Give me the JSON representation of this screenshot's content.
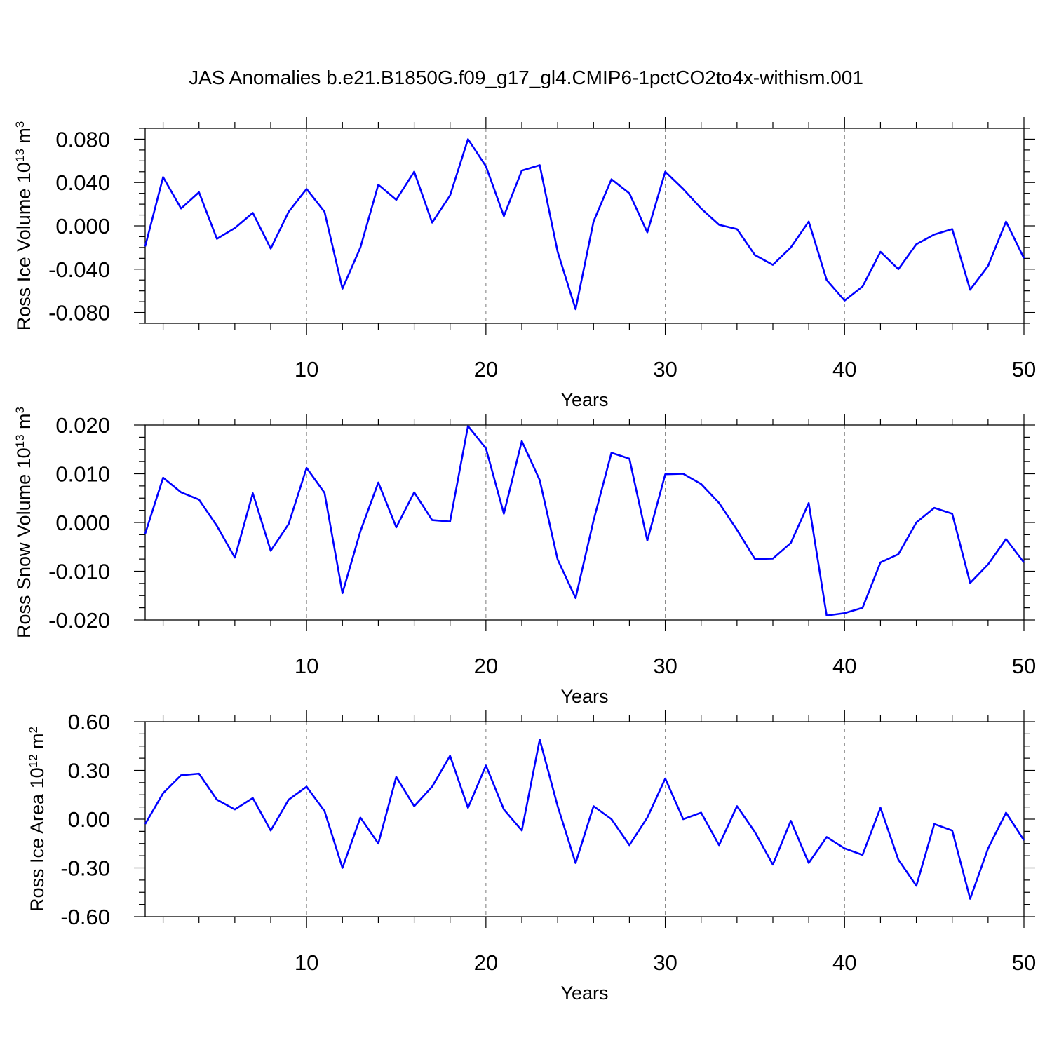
{
  "figure": {
    "title": "JAS Anomalies b.e21.B1850G.f09_g17_gl4.CMIP6-1pctCO2to4x-withism.001",
    "line_color": "#0000ff"
  },
  "chart_data": [
    {
      "type": "line",
      "title": "",
      "xlabel": "Years",
      "ylabel_main": "Ross Ice Volume 10",
      "ylabel_exp": "13",
      "ylabel_unit": "m",
      "ylabel_unit_exp": "3",
      "xlim": [
        1,
        50
      ],
      "ylim": [
        -0.09,
        0.09
      ],
      "xticks": [
        10,
        20,
        30,
        40,
        50
      ],
      "yticks": [
        -0.08,
        -0.04,
        0.0,
        0.04,
        0.08
      ],
      "ytick_labels": [
        "-0.080",
        "-0.040",
        "0.000",
        "0.040",
        "0.080"
      ],
      "grid_x": [
        10,
        20,
        30,
        40
      ],
      "x": [
        1,
        2,
        3,
        4,
        5,
        6,
        7,
        8,
        9,
        10,
        11,
        12,
        13,
        14,
        15,
        16,
        17,
        18,
        19,
        20,
        21,
        22,
        23,
        24,
        25,
        26,
        27,
        28,
        29,
        30,
        31,
        32,
        33,
        34,
        35,
        36,
        37,
        38,
        39,
        40,
        41,
        42,
        43,
        44,
        45,
        46,
        47,
        48,
        49,
        50
      ],
      "y": [
        -0.019,
        0.045,
        0.016,
        0.031,
        -0.012,
        -0.002,
        0.012,
        -0.021,
        0.013,
        0.034,
        0.013,
        -0.058,
        -0.02,
        0.038,
        0.024,
        0.05,
        0.003,
        0.028,
        0.08,
        0.055,
        0.009,
        0.051,
        0.056,
        -0.024,
        -0.077,
        0.004,
        0.043,
        0.03,
        -0.006,
        0.05,
        0.034,
        0.016,
        0.001,
        -0.003,
        -0.027,
        -0.036,
        -0.02,
        0.004,
        -0.05,
        -0.069,
        -0.056,
        -0.024,
        -0.04,
        -0.017,
        -0.008,
        -0.003,
        -0.059,
        -0.037,
        0.004,
        -0.03
      ]
    },
    {
      "type": "line",
      "title": "",
      "xlabel": "Years",
      "ylabel_main": "Ross Snow Volume 10",
      "ylabel_exp": "13",
      "ylabel_unit": "m",
      "ylabel_unit_exp": "3",
      "xlim": [
        1,
        50
      ],
      "ylim": [
        -0.02,
        0.02
      ],
      "xticks": [
        10,
        20,
        30,
        40,
        50
      ],
      "yticks": [
        -0.02,
        -0.01,
        0.0,
        0.01,
        0.02
      ],
      "ytick_labels": [
        "-0.020",
        "-0.010",
        "0.000",
        "0.010",
        "0.020"
      ],
      "grid_x": [
        10,
        20,
        30,
        40
      ],
      "x": [
        1,
        2,
        3,
        4,
        5,
        6,
        7,
        8,
        9,
        10,
        11,
        12,
        13,
        14,
        15,
        16,
        17,
        18,
        19,
        20,
        21,
        22,
        23,
        24,
        25,
        26,
        27,
        28,
        29,
        30,
        31,
        32,
        33,
        34,
        35,
        36,
        37,
        38,
        39,
        40,
        41,
        42,
        43,
        44,
        45,
        46,
        47,
        48,
        49,
        50
      ],
      "y": [
        -0.0023,
        0.0092,
        0.0062,
        0.0047,
        -0.0007,
        -0.0072,
        0.006,
        -0.0058,
        -0.0003,
        0.0112,
        0.0061,
        -0.0145,
        -0.0018,
        0.0082,
        -0.001,
        0.0062,
        0.0005,
        0.0002,
        0.0198,
        0.0152,
        0.0018,
        0.0167,
        0.0087,
        -0.0076,
        -0.0155,
        0.0004,
        0.0143,
        0.0131,
        -0.0037,
        0.0099,
        0.01,
        0.0079,
        0.004,
        -0.0015,
        -0.0075,
        -0.0074,
        -0.0042,
        0.004,
        -0.0191,
        -0.0186,
        -0.0175,
        -0.0082,
        -0.0065,
        0.0,
        0.003,
        0.0018,
        -0.0124,
        -0.0086,
        -0.0034,
        -0.0082
      ]
    },
    {
      "type": "line",
      "title": "",
      "xlabel": "Years",
      "ylabel_main": "Ross Ice Area 10",
      "ylabel_exp": "12",
      "ylabel_unit": "m",
      "ylabel_unit_exp": "2",
      "xlim": [
        1,
        50
      ],
      "ylim": [
        -0.6,
        0.6
      ],
      "xticks": [
        10,
        20,
        30,
        40,
        50
      ],
      "yticks": [
        -0.6,
        -0.3,
        0.0,
        0.3,
        0.6
      ],
      "ytick_labels": [
        "-0.60",
        "-0.30",
        "0.00",
        "0.30",
        "0.60"
      ],
      "grid_x": [
        10,
        20,
        30,
        40
      ],
      "x": [
        1,
        2,
        3,
        4,
        5,
        6,
        7,
        8,
        9,
        10,
        11,
        12,
        13,
        14,
        15,
        16,
        17,
        18,
        19,
        20,
        21,
        22,
        23,
        24,
        25,
        26,
        27,
        28,
        29,
        30,
        31,
        32,
        33,
        34,
        35,
        36,
        37,
        38,
        39,
        40,
        41,
        42,
        43,
        44,
        45,
        46,
        47,
        48,
        49,
        50
      ],
      "y": [
        -0.03,
        0.16,
        0.27,
        0.28,
        0.12,
        0.06,
        0.13,
        -0.07,
        0.12,
        0.2,
        0.05,
        -0.3,
        0.01,
        -0.15,
        0.26,
        0.08,
        0.2,
        0.39,
        0.07,
        0.33,
        0.06,
        -0.07,
        0.49,
        0.08,
        -0.27,
        0.08,
        0.0,
        -0.16,
        0.01,
        0.25,
        0.0,
        0.04,
        -0.16,
        0.08,
        -0.08,
        -0.28,
        -0.01,
        -0.27,
        -0.11,
        -0.18,
        -0.22,
        0.07,
        -0.25,
        -0.41,
        -0.03,
        -0.07,
        -0.49,
        -0.18,
        0.04,
        -0.13
      ]
    }
  ]
}
